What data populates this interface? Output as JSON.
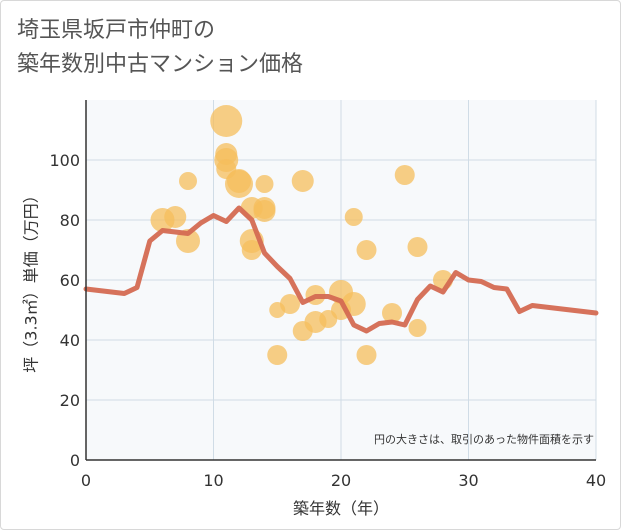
{
  "title_line1": "埼玉県坂戸市仲町の",
  "title_line2": "築年数別中古マンション価格",
  "chart_data": {
    "type": "scatter",
    "title": "埼玉県坂戸市仲町の築年数別中古マンション価格",
    "xlabel": "築年数（年）",
    "ylabel": "坪（3.3㎡）単価（万円）",
    "xlim": [
      0,
      40
    ],
    "ylim": [
      0,
      120
    ],
    "x_ticks": [
      0,
      10,
      20,
      30,
      40
    ],
    "y_ticks": [
      0,
      20,
      40,
      60,
      80,
      100
    ],
    "grid": true,
    "note": "円の大きさは、取引のあった物件面積を示す",
    "colors": {
      "bubble": "#f5be5c",
      "line": "#d46a52",
      "grid": "#d0dce6",
      "plot_bg": "#f7f9fb"
    },
    "series": [
      {
        "type": "bubble",
        "points": [
          {
            "x": 6,
            "y": 80,
            "s": 12
          },
          {
            "x": 7,
            "y": 81,
            "s": 11
          },
          {
            "x": 8,
            "y": 93,
            "s": 9
          },
          {
            "x": 8,
            "y": 73,
            "s": 12
          },
          {
            "x": 11,
            "y": 113,
            "s": 16
          },
          {
            "x": 11,
            "y": 102,
            "s": 11
          },
          {
            "x": 11,
            "y": 100,
            "s": 12
          },
          {
            "x": 11,
            "y": 97,
            "s": 10
          },
          {
            "x": 12,
            "y": 93,
            "s": 12
          },
          {
            "x": 12,
            "y": 92,
            "s": 14
          },
          {
            "x": 13,
            "y": 84,
            "s": 11
          },
          {
            "x": 13,
            "y": 73,
            "s": 12
          },
          {
            "x": 13,
            "y": 70,
            "s": 10
          },
          {
            "x": 14,
            "y": 92,
            "s": 9
          },
          {
            "x": 14,
            "y": 84,
            "s": 11
          },
          {
            "x": 14,
            "y": 83,
            "s": 11
          },
          {
            "x": 15,
            "y": 50,
            "s": 8
          },
          {
            "x": 15,
            "y": 35,
            "s": 10
          },
          {
            "x": 16,
            "y": 52,
            "s": 10
          },
          {
            "x": 17,
            "y": 93,
            "s": 11
          },
          {
            "x": 17,
            "y": 43,
            "s": 10
          },
          {
            "x": 18,
            "y": 55,
            "s": 10
          },
          {
            "x": 18,
            "y": 46,
            "s": 11
          },
          {
            "x": 19,
            "y": 47,
            "s": 9
          },
          {
            "x": 20,
            "y": 56,
            "s": 12
          },
          {
            "x": 20,
            "y": 50,
            "s": 10
          },
          {
            "x": 21,
            "y": 81,
            "s": 9
          },
          {
            "x": 21,
            "y": 52,
            "s": 12
          },
          {
            "x": 22,
            "y": 70,
            "s": 10
          },
          {
            "x": 22,
            "y": 35,
            "s": 10
          },
          {
            "x": 24,
            "y": 49,
            "s": 10
          },
          {
            "x": 25,
            "y": 95,
            "s": 10
          },
          {
            "x": 26,
            "y": 71,
            "s": 10
          },
          {
            "x": 26,
            "y": 44,
            "s": 9
          },
          {
            "x": 28,
            "y": 60,
            "s": 10
          }
        ]
      },
      {
        "type": "line",
        "points": [
          {
            "x": 0,
            "y": 57
          },
          {
            "x": 3,
            "y": 55.5
          },
          {
            "x": 4,
            "y": 57.5
          },
          {
            "x": 5,
            "y": 73
          },
          {
            "x": 6,
            "y": 76.5
          },
          {
            "x": 8,
            "y": 75.5
          },
          {
            "x": 9,
            "y": 79
          },
          {
            "x": 10,
            "y": 81.5
          },
          {
            "x": 11,
            "y": 79.5
          },
          {
            "x": 12,
            "y": 84
          },
          {
            "x": 13,
            "y": 80
          },
          {
            "x": 14,
            "y": 69
          },
          {
            "x": 15,
            "y": 64.5
          },
          {
            "x": 16,
            "y": 60.5
          },
          {
            "x": 17,
            "y": 52.5
          },
          {
            "x": 18,
            "y": 54.5
          },
          {
            "x": 19,
            "y": 54.5
          },
          {
            "x": 20,
            "y": 53
          },
          {
            "x": 21,
            "y": 45
          },
          {
            "x": 22,
            "y": 43
          },
          {
            "x": 23,
            "y": 45.5
          },
          {
            "x": 24,
            "y": 46
          },
          {
            "x": 25,
            "y": 45
          },
          {
            "x": 26,
            "y": 53.5
          },
          {
            "x": 27,
            "y": 58
          },
          {
            "x": 28,
            "y": 56
          },
          {
            "x": 29,
            "y": 62.5
          },
          {
            "x": 30,
            "y": 60
          },
          {
            "x": 31,
            "y": 59.5
          },
          {
            "x": 32,
            "y": 57.5
          },
          {
            "x": 33,
            "y": 57
          },
          {
            "x": 34,
            "y": 49.5
          },
          {
            "x": 35,
            "y": 51.5
          },
          {
            "x": 40,
            "y": 49
          }
        ]
      }
    ]
  }
}
